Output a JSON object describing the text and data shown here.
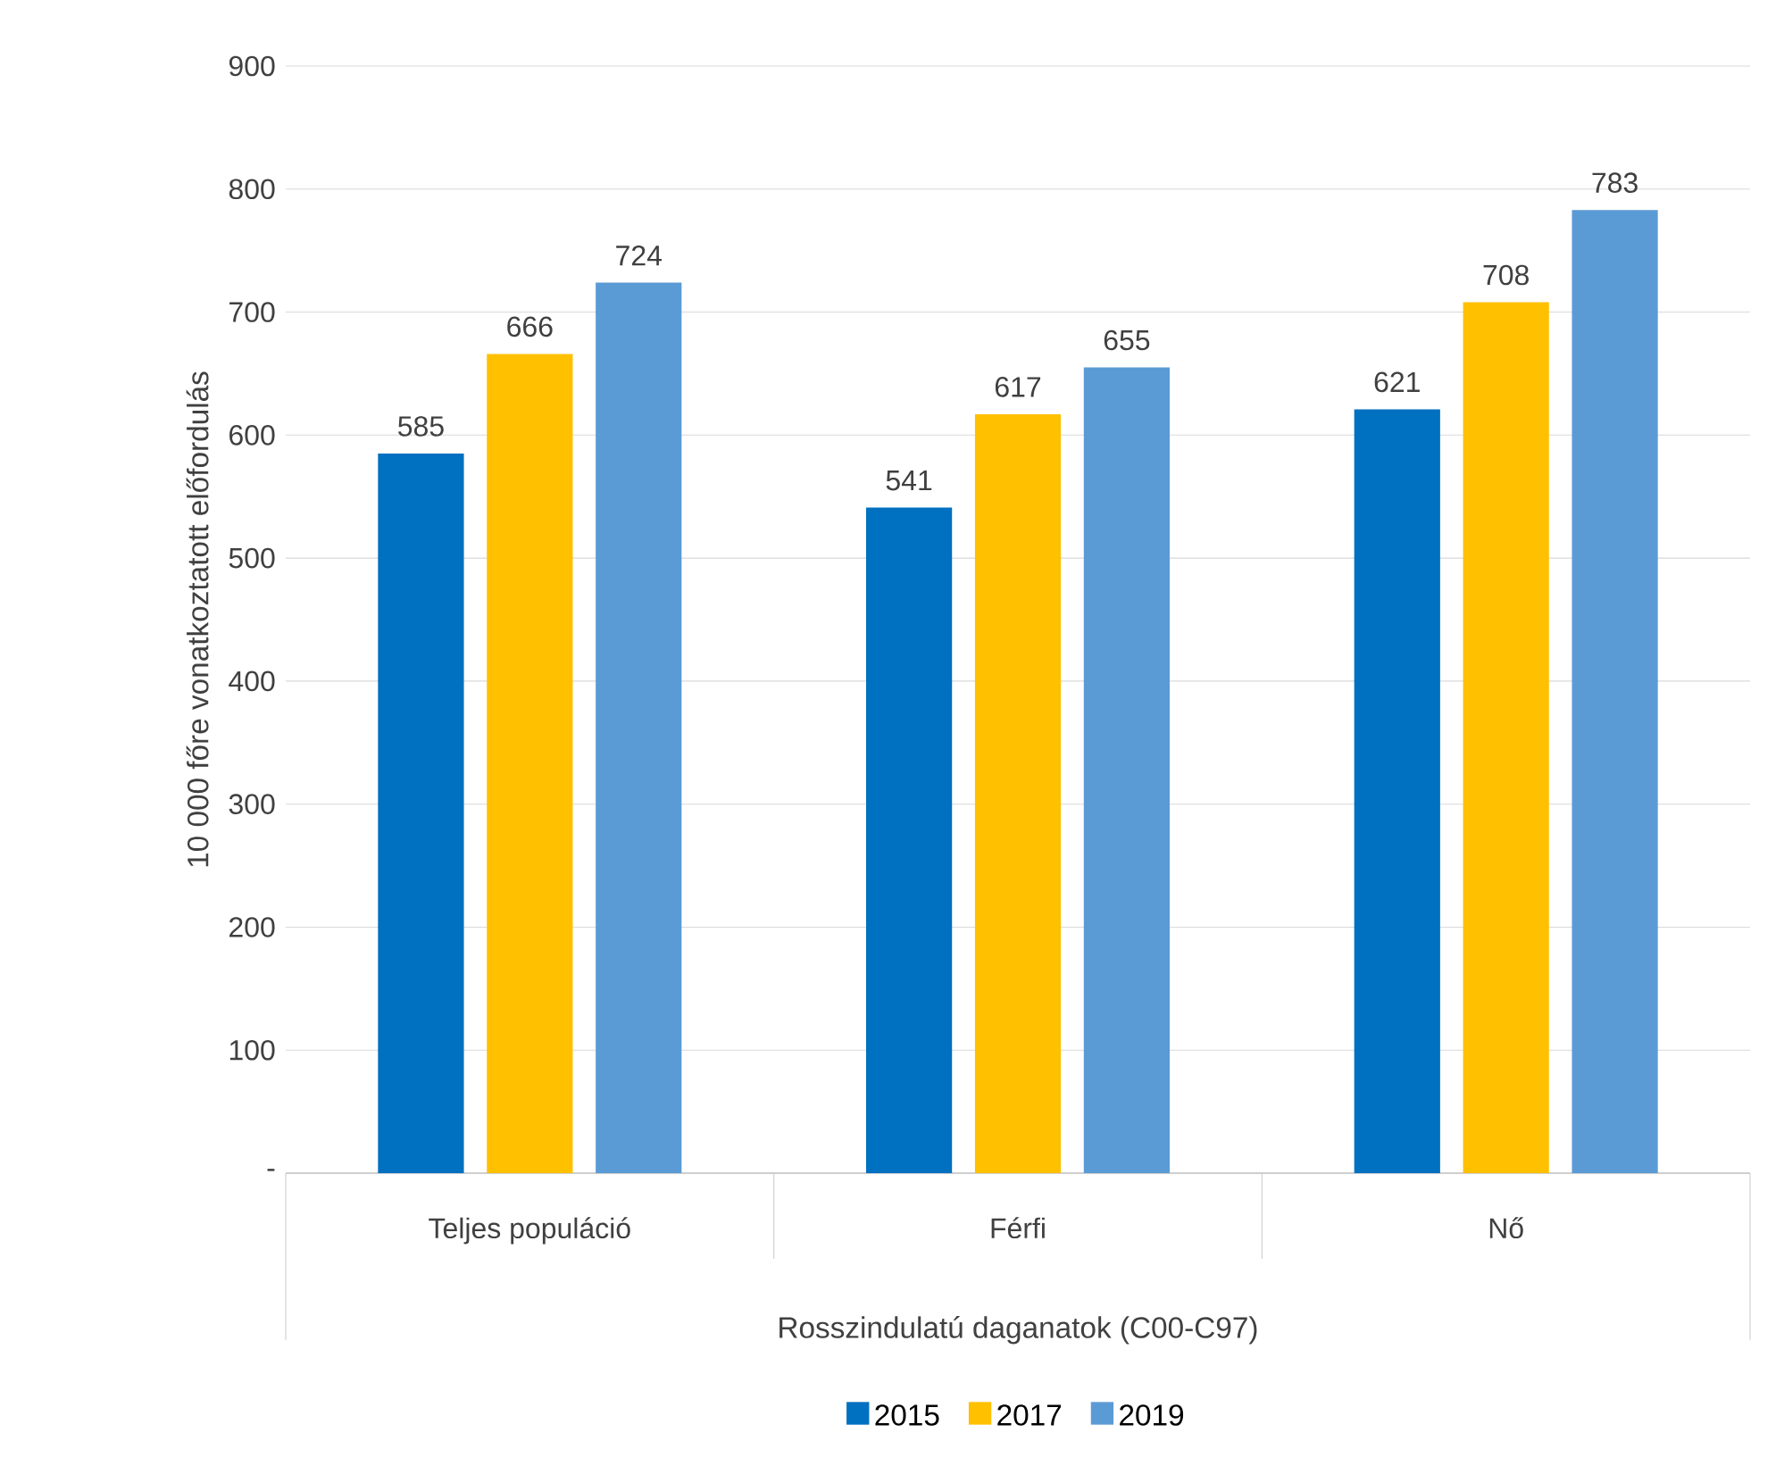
{
  "chart_data": {
    "type": "bar",
    "categories": [
      "Teljes populáció",
      "Férfi",
      "Nő"
    ],
    "series": [
      {
        "name": "2015",
        "color": "#0070c0",
        "values": [
          585,
          541,
          621
        ]
      },
      {
        "name": "2017",
        "color": "#ffc000",
        "values": [
          666,
          617,
          708
        ]
      },
      {
        "name": "2019",
        "color": "#5b9bd5",
        "values": [
          724,
          655,
          783
        ]
      }
    ],
    "xlabel": "Rosszindulatú daganatok (C00-C97)",
    "ylabel": "10 000 főre vonatkoztatott előfordulás",
    "ylim": [
      0,
      900
    ],
    "yticks": [
      {
        "value": 0,
        "label": "-"
      },
      100,
      200,
      300,
      400,
      500,
      600,
      700,
      800,
      900
    ],
    "grid": "y",
    "legend": "bottom",
    "data_labels": true
  }
}
